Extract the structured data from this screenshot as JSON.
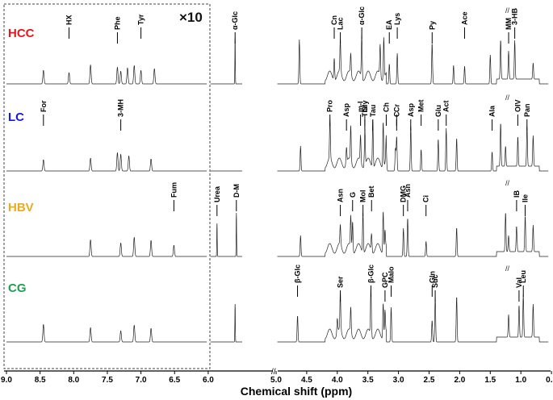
{
  "chart_data": {
    "type": "line",
    "title": "",
    "xlabel": "Chemical shift (ppm)",
    "ylabel": "",
    "x_direction": "reversed",
    "x_axis_break_between": [
      6.0,
      5.0
    ],
    "x_tick_labels": [
      "9.0",
      "8.5",
      "8.0",
      "7.5",
      "7.0",
      "6.5",
      "6.0",
      "5.0",
      "4.5",
      "4.0",
      "3.5",
      "3.0",
      "2.5",
      "2.0",
      "1.5",
      "1.0",
      "0.5"
    ],
    "inset": {
      "x_range": [
        9.0,
        6.0
      ],
      "scale_label": "×10",
      "frame": "dashed"
    },
    "axis_cut_mark": "//",
    "series": [
      {
        "name": "HCC",
        "color": "#e8141c",
        "annotations": [
          {
            "label": "HX",
            "ppm": 8.07
          },
          {
            "label": "Phe",
            "ppm": 7.35
          },
          {
            "label": "Tyr",
            "ppm": 7.0
          },
          {
            "label": "α-Glc",
            "ppm": 5.22
          },
          {
            "label": "Cn",
            "ppm": 4.05
          },
          {
            "label": "Lac",
            "ppm": 3.95
          },
          {
            "label": "α-Glc",
            "ppm": 3.6
          },
          {
            "label": "EA",
            "ppm": 3.15
          },
          {
            "label": "Lys",
            "ppm": 3.02
          },
          {
            "label": "Py",
            "ppm": 2.45
          },
          {
            "label": "Ace",
            "ppm": 1.92
          },
          {
            "label": "MM",
            "ppm": 1.2
          },
          {
            "label": "3-HB",
            "ppm": 1.1
          }
        ]
      },
      {
        "name": "LC",
        "color": "#1a1adb",
        "annotations": [
          {
            "label": "For",
            "ppm": 8.45
          },
          {
            "label": "3-MH",
            "ppm": 7.3
          },
          {
            "label": "Pro",
            "ppm": 4.12
          },
          {
            "label": "Asp",
            "ppm": 3.85
          },
          {
            "label": "m-I",
            "ppm": 3.62
          },
          {
            "label": "Thr",
            "ppm": 3.55
          },
          {
            "label": "Gly",
            "ppm": 3.55
          },
          {
            "label": "Tau",
            "ppm": 3.42
          },
          {
            "label": "Ch",
            "ppm": 3.2
          },
          {
            "label": "C",
            "ppm": 3.03
          },
          {
            "label": "Cr",
            "ppm": 3.03
          },
          {
            "label": "Asp",
            "ppm": 2.8
          },
          {
            "label": "Met",
            "ppm": 2.63
          },
          {
            "label": "Glu",
            "ppm": 2.35
          },
          {
            "label": "Act",
            "ppm": 2.22
          },
          {
            "label": "Ala",
            "ppm": 1.47
          },
          {
            "label": "OIV",
            "ppm": 1.05
          },
          {
            "label": "Pan",
            "ppm": 0.9
          }
        ]
      },
      {
        "name": "HBV",
        "color": "#f0a81e",
        "annotations": [
          {
            "label": "Fum",
            "ppm": 6.51
          },
          {
            "label": "Urea",
            "ppm": 5.78
          },
          {
            "label": "D-M",
            "ppm": 5.18
          },
          {
            "label": "Asn",
            "ppm": 3.95
          },
          {
            "label": "G",
            "ppm": 3.75
          },
          {
            "label": "Mol",
            "ppm": 3.58
          },
          {
            "label": "Bet",
            "ppm": 3.44
          },
          {
            "label": "DMG",
            "ppm": 2.92
          },
          {
            "label": "Asn",
            "ppm": 2.85
          },
          {
            "label": "Ci",
            "ppm": 2.55
          },
          {
            "label": "IB",
            "ppm": 1.07
          },
          {
            "label": "Ile",
            "ppm": 0.93
          }
        ]
      },
      {
        "name": "CG",
        "color": "#1ea050",
        "annotations": [
          {
            "label": "β-Glc",
            "ppm": 4.65
          },
          {
            "label": "Ser",
            "ppm": 3.95
          },
          {
            "label": "β-Glc",
            "ppm": 3.45
          },
          {
            "label": "GPC",
            "ppm": 3.22
          },
          {
            "label": "Malo",
            "ppm": 3.12
          },
          {
            "label": "Suc",
            "ppm": 2.4
          },
          {
            "label": "Gln",
            "ppm": 2.45
          },
          {
            "label": "Val",
            "ppm": 1.03
          },
          {
            "label": "Leu",
            "ppm": 0.96
          }
        ]
      }
    ],
    "grid": false,
    "legend": "none"
  }
}
